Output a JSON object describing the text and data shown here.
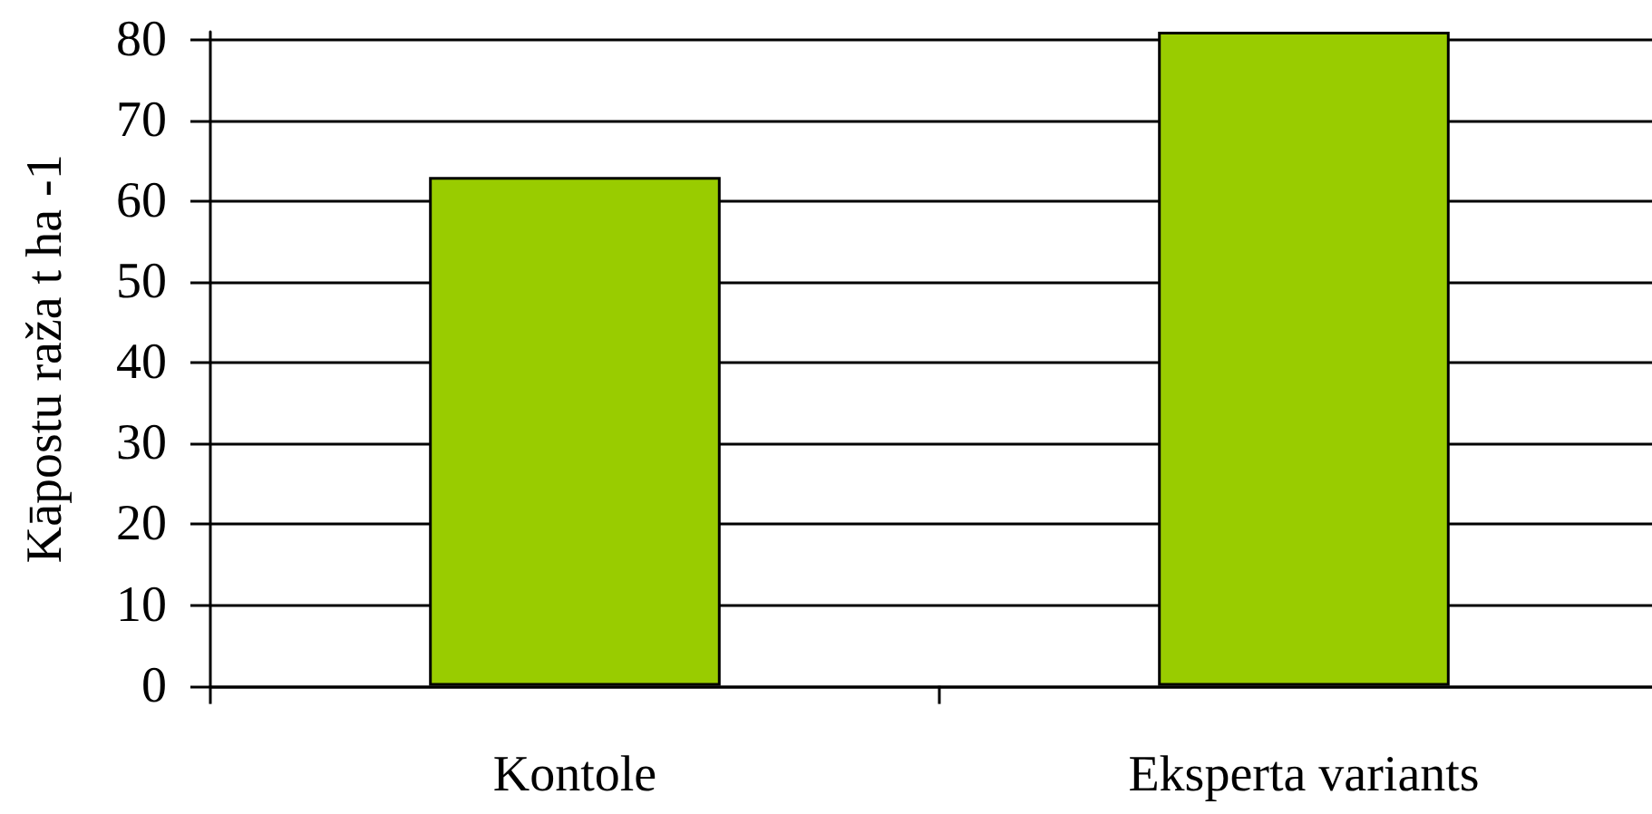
{
  "chart_data": {
    "type": "bar",
    "ylabel": "Kāpostu raža t ha -1",
    "categories": [
      "Kontole",
      "Eksperta variants"
    ],
    "values": [
      63,
      81
    ],
    "color": "#99cc00",
    "ylim": [
      0,
      81
    ],
    "yticks": [
      0,
      10,
      20,
      30,
      40,
      50,
      60,
      70,
      80
    ],
    "grid": "y"
  }
}
